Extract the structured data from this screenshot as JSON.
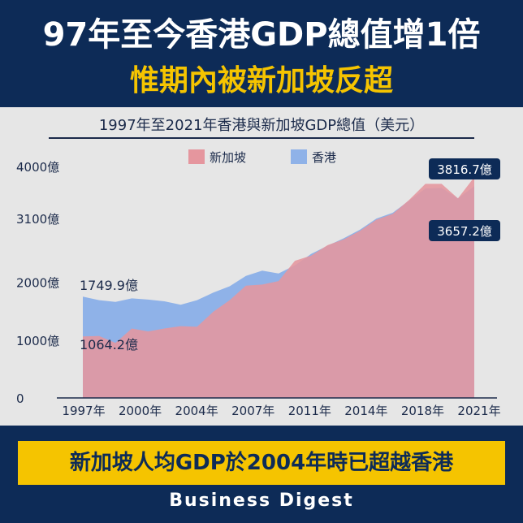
{
  "header": {
    "headline": "97年至今香港GDP總值增1倍",
    "subheadline": "惟期內被新加坡反超"
  },
  "footer": {
    "banner": "新加坡人均GDP於2004年時已超越香港",
    "brand": "Business Digest"
  },
  "colors": {
    "background": "#0d2b57",
    "accent": "#f5c400",
    "panel": "#e6e6e6",
    "singapore": "#e5969e",
    "hongkong": "#8fb2e8",
    "label_box": "#0d2b57"
  },
  "chart_data": {
    "type": "area",
    "title": "1997年至2021年香港與新加坡GDP總值（美元）",
    "xlabel": "",
    "ylabel": "",
    "ylim": [
      0,
      4000
    ],
    "y_ticks": [
      {
        "value": 0,
        "label": "0"
      },
      {
        "value": 1000,
        "label": "1000億"
      },
      {
        "value": 2000,
        "label": "2000億"
      },
      {
        "value": 3100,
        "label": "3100億"
      },
      {
        "value": 4000,
        "label": "4000億"
      }
    ],
    "x_tick_labels": [
      "1997年",
      "2000年",
      "2004年",
      "2007年",
      "2011年",
      "2014年",
      "2018年",
      "2021年"
    ],
    "x": [
      1997,
      1998,
      1999,
      2000,
      2001,
      2002,
      2003,
      2004,
      2005,
      2006,
      2007,
      2008,
      2009,
      2010,
      2011,
      2012,
      2013,
      2014,
      2015,
      2016,
      2017,
      2018,
      2019,
      2020,
      2021
    ],
    "legend": [
      "新加坡",
      "香港"
    ],
    "legend_position": "top-center",
    "series": [
      {
        "name": "香港",
        "values": [
          1749.9,
          1690,
          1660,
          1720,
          1700,
          1670,
          1610,
          1690,
          1820,
          1930,
          2110,
          2200,
          2150,
          2290,
          2490,
          2630,
          2760,
          2910,
          3100,
          3200,
          3410,
          3620,
          3630,
          3450,
          3657.2
        ]
      },
      {
        "name": "新加坡",
        "values": [
          1064.2,
          1070,
          950,
          1200,
          1150,
          1200,
          1240,
          1230,
          1490,
          1690,
          1940,
          1960,
          2020,
          2370,
          2460,
          2640,
          2740,
          2890,
          3080,
          3180,
          3420,
          3700,
          3700,
          3450,
          3816.7
        ]
      }
    ],
    "annotations": [
      {
        "series": "香港",
        "year": 1997,
        "label": "1749.9億"
      },
      {
        "series": "新加坡",
        "year": 1997,
        "label": "1064.2億"
      },
      {
        "series": "新加坡",
        "year": 2021,
        "label": "3816.7億"
      },
      {
        "series": "香港",
        "year": 2021,
        "label": "3657.2億"
      }
    ]
  }
}
